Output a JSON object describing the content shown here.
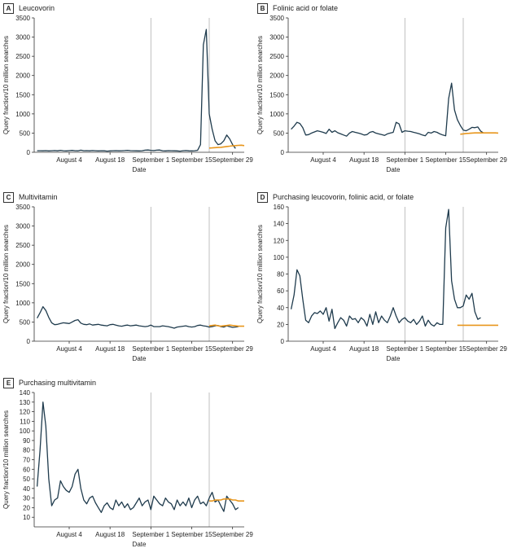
{
  "colors": {
    "observed": "#1f3b4d",
    "expected": "#e8961c",
    "axis": "#333333",
    "refline": "#b0b0b0"
  },
  "chart_data": [
    {
      "panel": "A",
      "title": "Leucovorin",
      "type": "line",
      "xlabel": "Date",
      "ylabel": "Query fraction/10 million searches",
      "xlim": [
        "2025-07-23",
        "2025-10-03"
      ],
      "ylim": [
        0,
        3500
      ],
      "yticks": [
        0,
        500,
        1000,
        1500,
        2000,
        2500,
        3000,
        3500
      ],
      "xticks": [
        {
          "date": "2025-08-04",
          "label": "August 4"
        },
        {
          "date": "2025-08-18",
          "label": "August 18"
        },
        {
          "date": "2025-09-01",
          "label": "September 1"
        },
        {
          "date": "2025-09-15",
          "label": "September 15"
        },
        {
          "date": "2025-09-29",
          "label": "September 29"
        }
      ],
      "reference_lines": [
        "2025-09-01",
        "2025-09-21"
      ],
      "series": [
        {
          "role": "observed",
          "start": "2025-07-24",
          "values": [
            40,
            40,
            38,
            42,
            35,
            40,
            45,
            38,
            50,
            40,
            35,
            42,
            48,
            40,
            38,
            55,
            40,
            42,
            38,
            45,
            40,
            35,
            40,
            38,
            30,
            35,
            40,
            42,
            38,
            40,
            45,
            50,
            42,
            40,
            38,
            35,
            40,
            55,
            60,
            50,
            45,
            55,
            60,
            40,
            35,
            42,
            40,
            38,
            35,
            30,
            40,
            45,
            38,
            35,
            40,
            50,
            200,
            2800,
            3200,
            1000,
            600,
            300,
            200,
            220,
            300,
            450,
            350,
            200,
            100
          ]
        },
        {
          "role": "expected",
          "start": "2025-09-21",
          "values": [
            110,
            115,
            120,
            125,
            130,
            140,
            150,
            160,
            170,
            175,
            180,
            185,
            175
          ]
        }
      ]
    },
    {
      "panel": "B",
      "title": "Folinic acid or folate",
      "type": "line",
      "xlabel": "Date",
      "ylabel": "Query fraction/10 million searches",
      "xlim": [
        "2025-07-23",
        "2025-10-03"
      ],
      "ylim": [
        0,
        3500
      ],
      "yticks": [
        0,
        500,
        1000,
        1500,
        2000,
        2500,
        3000,
        3500
      ],
      "xticks": [
        {
          "date": "2025-08-04",
          "label": "August 4"
        },
        {
          "date": "2025-08-18",
          "label": "August 18"
        },
        {
          "date": "2025-09-01",
          "label": "September 1"
        },
        {
          "date": "2025-09-15",
          "label": "September 15"
        },
        {
          "date": "2025-09-29",
          "label": "September 29"
        }
      ],
      "reference_lines": [
        "2025-09-01",
        "2025-09-21"
      ],
      "series": [
        {
          "role": "observed",
          "start": "2025-07-24",
          "values": [
            600,
            680,
            780,
            750,
            640,
            450,
            460,
            500,
            530,
            560,
            540,
            520,
            490,
            600,
            520,
            560,
            510,
            480,
            450,
            420,
            500,
            540,
            520,
            500,
            480,
            450,
            460,
            520,
            540,
            500,
            480,
            460,
            440,
            480,
            500,
            520,
            780,
            740,
            520,
            560,
            550,
            540,
            520,
            500,
            480,
            450,
            430,
            520,
            500,
            540,
            520,
            480,
            450,
            430,
            1400,
            1800,
            1100,
            850,
            700,
            580,
            560,
            600,
            650,
            640,
            660,
            550,
            500
          ]
        },
        {
          "role": "expected",
          "start": "2025-09-20",
          "values": [
            470,
            480,
            490,
            495,
            500,
            505,
            505,
            505,
            505,
            505,
            505,
            505,
            505,
            500
          ]
        }
      ]
    },
    {
      "panel": "C",
      "title": "Multivitamin",
      "type": "line",
      "xlabel": "Date",
      "ylabel": "Query fraction/10 million searches",
      "xlim": [
        "2025-07-23",
        "2025-10-03"
      ],
      "ylim": [
        0,
        3500
      ],
      "yticks": [
        0,
        500,
        1000,
        1500,
        2000,
        2500,
        3000,
        3500
      ],
      "xticks": [
        {
          "date": "2025-08-04",
          "label": "August 4"
        },
        {
          "date": "2025-08-18",
          "label": "August 18"
        },
        {
          "date": "2025-09-01",
          "label": "September 1"
        },
        {
          "date": "2025-09-15",
          "label": "September 15"
        },
        {
          "date": "2025-09-29",
          "label": "September 29"
        }
      ],
      "reference_lines": [
        "2025-09-01",
        "2025-09-21"
      ],
      "series": [
        {
          "role": "observed",
          "start": "2025-07-24",
          "values": [
            600,
            740,
            900,
            800,
            620,
            480,
            430,
            440,
            460,
            480,
            470,
            460,
            500,
            540,
            560,
            470,
            440,
            430,
            450,
            420,
            430,
            440,
            420,
            410,
            400,
            430,
            440,
            420,
            400,
            390,
            410,
            420,
            400,
            410,
            420,
            400,
            390,
            380,
            390,
            420,
            380,
            380,
            380,
            400,
            390,
            380,
            360,
            340,
            370,
            380,
            390,
            400,
            380,
            370,
            380,
            410,
            420,
            400,
            390,
            370,
            380,
            400,
            410,
            380,
            370,
            400,
            380,
            360,
            370,
            380
          ]
        },
        {
          "role": "expected",
          "start": "2025-09-21",
          "values": [
            400,
            410,
            420,
            400,
            390,
            400,
            410,
            420,
            410,
            400,
            390,
            390,
            390
          ]
        }
      ]
    },
    {
      "panel": "D",
      "title": "Purchasing leucovorin, folinic acid, or folate",
      "type": "line",
      "xlabel": "Date",
      "ylabel": "Query fraction/10 million searches",
      "xlim": [
        "2025-07-23",
        "2025-10-03"
      ],
      "ylim": [
        0,
        160
      ],
      "yticks": [
        0,
        20,
        40,
        60,
        80,
        100,
        120,
        140,
        160
      ],
      "xticks": [
        {
          "date": "2025-08-04",
          "label": "August 4"
        },
        {
          "date": "2025-08-18",
          "label": "August 18"
        },
        {
          "date": "2025-09-01",
          "label": "September 1"
        },
        {
          "date": "2025-09-15",
          "label": "September 15"
        },
        {
          "date": "2025-09-29",
          "label": "September 29"
        }
      ],
      "reference_lines": [
        "2025-09-01",
        "2025-09-21"
      ],
      "series": [
        {
          "role": "observed",
          "start": "2025-07-24",
          "values": [
            38,
            55,
            85,
            78,
            50,
            25,
            22,
            30,
            34,
            33,
            36,
            32,
            40,
            24,
            38,
            15,
            22,
            28,
            25,
            18,
            30,
            26,
            27,
            22,
            28,
            25,
            18,
            32,
            20,
            35,
            22,
            30,
            25,
            22,
            30,
            40,
            30,
            22,
            26,
            28,
            24,
            22,
            26,
            20,
            24,
            30,
            18,
            25,
            20,
            18,
            22,
            20,
            20,
            135,
            157,
            72,
            50,
            40,
            40,
            42,
            55,
            50,
            57,
            35,
            26,
            28
          ]
        },
        {
          "role": "expected",
          "start": "2025-09-19",
          "values": [
            19,
            19,
            19,
            19,
            19,
            19,
            19,
            19,
            19,
            19,
            19,
            19,
            19,
            19,
            19
          ]
        }
      ]
    },
    {
      "panel": "E",
      "title": "Purchasing multivitamin",
      "type": "line",
      "xlabel": "Date",
      "ylabel": "Query fraction/10 million searches",
      "xlim": [
        "2025-07-23",
        "2025-10-03"
      ],
      "ylim": [
        0,
        140
      ],
      "yticks": [
        10,
        20,
        30,
        40,
        50,
        60,
        70,
        80,
        90,
        100,
        110,
        120,
        130,
        140
      ],
      "xticks": [
        {
          "date": "2025-08-04",
          "label": "August 4"
        },
        {
          "date": "2025-08-18",
          "label": "August 18"
        },
        {
          "date": "2025-09-01",
          "label": "September 1"
        },
        {
          "date": "2025-09-15",
          "label": "September 15"
        },
        {
          "date": "2025-09-29",
          "label": "September 29"
        }
      ],
      "reference_lines": [
        "2025-09-01",
        "2025-09-21"
      ],
      "series": [
        {
          "role": "observed",
          "start": "2025-07-24",
          "values": [
            42,
            80,
            130,
            105,
            50,
            22,
            28,
            30,
            48,
            42,
            38,
            36,
            42,
            55,
            60,
            40,
            28,
            24,
            30,
            32,
            25,
            20,
            15,
            22,
            25,
            20,
            18,
            28,
            22,
            26,
            20,
            24,
            18,
            20,
            25,
            30,
            22,
            26,
            28,
            18,
            32,
            28,
            24,
            22,
            30,
            26,
            24,
            18,
            28,
            22,
            26,
            22,
            30,
            20,
            28,
            32,
            24,
            26,
            22,
            30,
            36,
            26,
            28,
            22,
            16,
            32,
            28,
            24,
            18,
            20
          ]
        },
        {
          "role": "expected",
          "start": "2025-09-21",
          "values": [
            27,
            27,
            28,
            28,
            28,
            29,
            29,
            29,
            28,
            28,
            27,
            27,
            27
          ]
        }
      ]
    }
  ]
}
